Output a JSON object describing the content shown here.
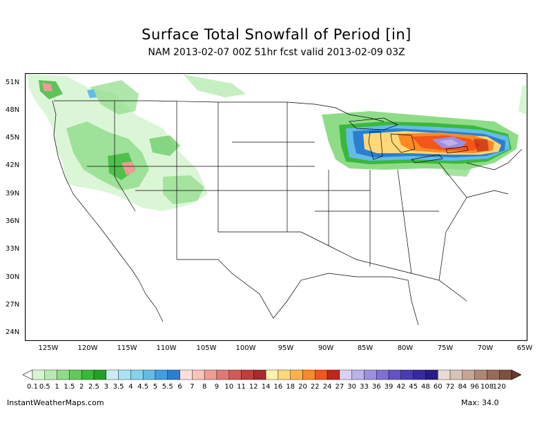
{
  "title": "Surface Total Snowfall of Period [in]",
  "subtitle": "NAM 2013-02-07 00Z 51hr fcst valid 2013-02-09 03Z",
  "lat_labels": [
    "51N",
    "48N",
    "45N",
    "42N",
    "39N",
    "36N",
    "33N",
    "30N",
    "27N",
    "24N"
  ],
  "lon_labels": [
    "125W",
    "120W",
    "115W",
    "110W",
    "105W",
    "100W",
    "95W",
    "90W",
    "85W",
    "80W",
    "75W",
    "70W",
    "65W"
  ],
  "colorbar": {
    "labels": [
      "0.1",
      "0.5",
      "1",
      "1.5",
      "2",
      "2.5",
      "3",
      "3.5",
      "4",
      "4.5",
      "5",
      "5.5",
      "6",
      "7",
      "8",
      "9",
      "10",
      "11",
      "12",
      "14",
      "16",
      "18",
      "20",
      "22",
      "24",
      "27",
      "30",
      "33",
      "36",
      "39",
      "42",
      "45",
      "48",
      "60",
      "72",
      "84",
      "96",
      "108",
      "120"
    ],
    "colors": [
      "#d7f5d3",
      "#b6ebb0",
      "#8fdc88",
      "#62c95c",
      "#3bb83a",
      "#22a023",
      "#c9eef8",
      "#a8e3f5",
      "#86d2ef",
      "#63bce8",
      "#3f9fe0",
      "#2a7fd0",
      "#fde0dc",
      "#f9c2bc",
      "#ef9c95",
      "#e27873",
      "#d25a57",
      "#c03e3e",
      "#a82a2a",
      "#fff1b0",
      "#ffd87a",
      "#ffb247",
      "#ff8a23",
      "#f2561a",
      "#c0261a",
      "#d8d2f3",
      "#bcb1ec",
      "#9c8ee0",
      "#7f6fd4",
      "#6353c6",
      "#4a3bb5",
      "#372aa0",
      "#281b85",
      "#e9dcd4",
      "#d9c2b6",
      "#c6a596",
      "#b08676",
      "#9a6a59",
      "#7e5040"
    ]
  },
  "footer": {
    "source": "InstantWeatherMaps.com",
    "max": "Max:  34.0"
  }
}
